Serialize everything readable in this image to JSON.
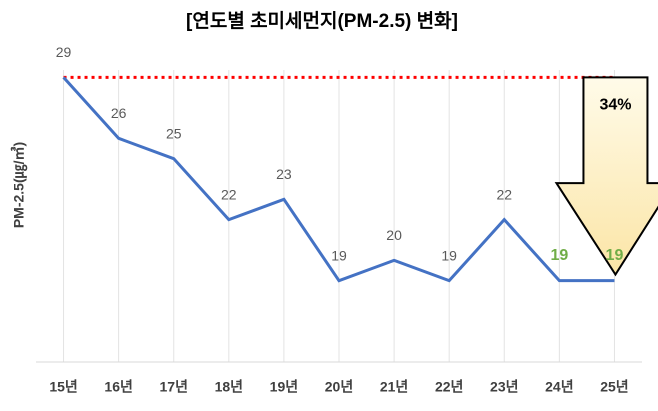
{
  "chart_data": {
    "type": "line",
    "title": "[연도별 초미세먼지(PM-2.5) 변화]",
    "y_label": "PM-2.5(㎍/㎥)",
    "categories": [
      "15년",
      "16년",
      "17년",
      "18년",
      "19년",
      "20년",
      "21년",
      "22년",
      "23년",
      "24년",
      "25년"
    ],
    "values": [
      29,
      26,
      25,
      22,
      23,
      19,
      20,
      19,
      22,
      19,
      19
    ],
    "color": "#4472c4",
    "label_colors": [
      "#595959",
      "#595959",
      "#595959",
      "#595959",
      "#595959",
      "#595959",
      "#595959",
      "#595959",
      "#595959",
      "#70ad47",
      "#70ad47"
    ],
    "ylim": [
      15,
      30
    ],
    "grid": true,
    "reference_line": {
      "value": 29,
      "color": "#ff0000"
    },
    "annotation": "34%"
  }
}
